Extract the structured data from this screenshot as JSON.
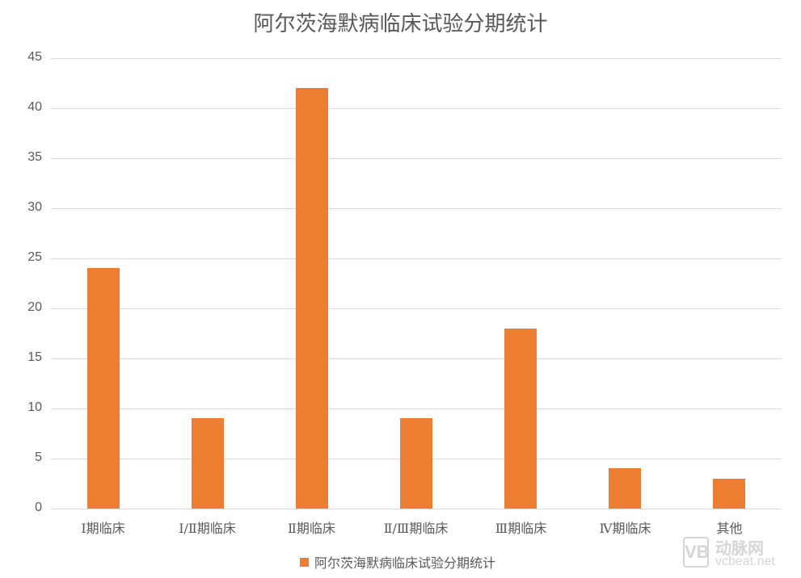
{
  "chart_data": {
    "type": "bar",
    "title": "阿尔茨海默病临床试验分期统计",
    "categories": [
      "Ⅰ期临床",
      "Ⅰ/Ⅱ期临床",
      "Ⅱ期临床",
      "Ⅱ/Ⅲ期临床",
      "Ⅲ期临床",
      "Ⅳ期临床",
      "其他"
    ],
    "series": [
      {
        "name": "阿尔茨海默病临床试验分期统计",
        "values": [
          24,
          9,
          42,
          9,
          18,
          4,
          3
        ],
        "color": "#ED7D31"
      }
    ],
    "xlabel": "",
    "ylabel": "",
    "ylim": [
      0,
      45
    ],
    "yticks": [
      0,
      5,
      10,
      15,
      20,
      25,
      30,
      35,
      40,
      45
    ],
    "grid": true,
    "legend_position": "bottom"
  },
  "title": "阿尔茨海默病临床试验分期统计",
  "x_labels": [
    "Ⅰ期临床",
    "Ⅰ/Ⅱ期临床",
    "Ⅱ期临床",
    "Ⅱ/Ⅲ期临床",
    "Ⅲ期临床",
    "Ⅳ期临床",
    "其他"
  ],
  "y_labels": [
    "0",
    "5",
    "10",
    "15",
    "20",
    "25",
    "30",
    "35",
    "40",
    "45"
  ],
  "legend": {
    "label": "阿尔茨海默病临床试验分期统计",
    "color": "#ED7D31"
  },
  "watermark": {
    "logo": "VB",
    "name": "动脉网",
    "url": "vcbeat.net"
  }
}
